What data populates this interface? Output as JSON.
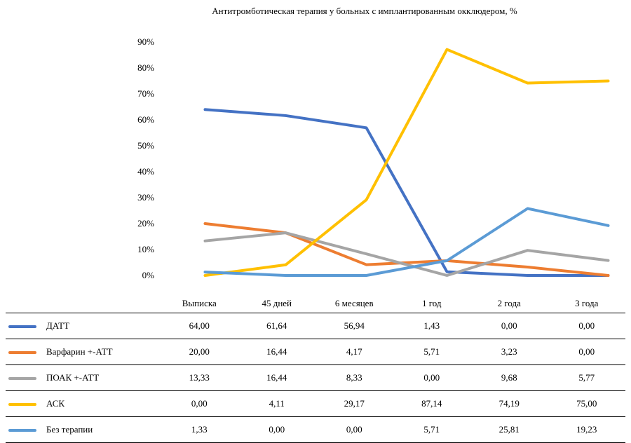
{
  "chart_data": {
    "type": "line",
    "title": "Антитромботическая терапия у больных с имплантированным окклюдером, %",
    "categories": [
      "Выписка",
      "45 дней",
      "6 месяцев",
      "1 год",
      "2 года",
      "3 года"
    ],
    "y_ticks": [
      "90%",
      "80%",
      "70%",
      "60%",
      "50%",
      "40%",
      "30%",
      "20%",
      "10%",
      "0%"
    ],
    "ylim": [
      0,
      90
    ],
    "grid": false,
    "legend_placement": "bottom-table",
    "series": [
      {
        "name": "ДАТТ",
        "color": "#4472c4",
        "values": [
          64.0,
          61.64,
          56.94,
          1.43,
          0.0,
          0.0
        ],
        "labels": [
          "64,00",
          "61,64",
          "56,94",
          "1,43",
          "0,00",
          "0,00"
        ]
      },
      {
        "name": "Варфарин +-АТТ",
        "color": "#ed7d31",
        "values": [
          20.0,
          16.44,
          4.17,
          5.71,
          3.23,
          0.0
        ],
        "labels": [
          "20,00",
          "16,44",
          "4,17",
          "5,71",
          "3,23",
          "0,00"
        ]
      },
      {
        "name": "ПОАК +-АТТ",
        "color": "#a5a5a5",
        "values": [
          13.33,
          16.44,
          8.33,
          0.0,
          9.68,
          5.77
        ],
        "labels": [
          "13,33",
          "16,44",
          "8,33",
          "0,00",
          "9,68",
          "5,77"
        ]
      },
      {
        "name": "АСК",
        "color": "#ffc000",
        "values": [
          0.0,
          4.11,
          29.17,
          87.14,
          74.19,
          75.0
        ],
        "labels": [
          "0,00",
          "4,11",
          "29,17",
          "87,14",
          "74,19",
          "75,00"
        ]
      },
      {
        "name": "Без терапии",
        "color": "#5b9bd5",
        "values": [
          1.33,
          0.0,
          0.0,
          5.71,
          25.81,
          19.23
        ],
        "labels": [
          "1,33",
          "0,00",
          "0,00",
          "5,71",
          "25,81",
          "19,23"
        ]
      }
    ]
  }
}
